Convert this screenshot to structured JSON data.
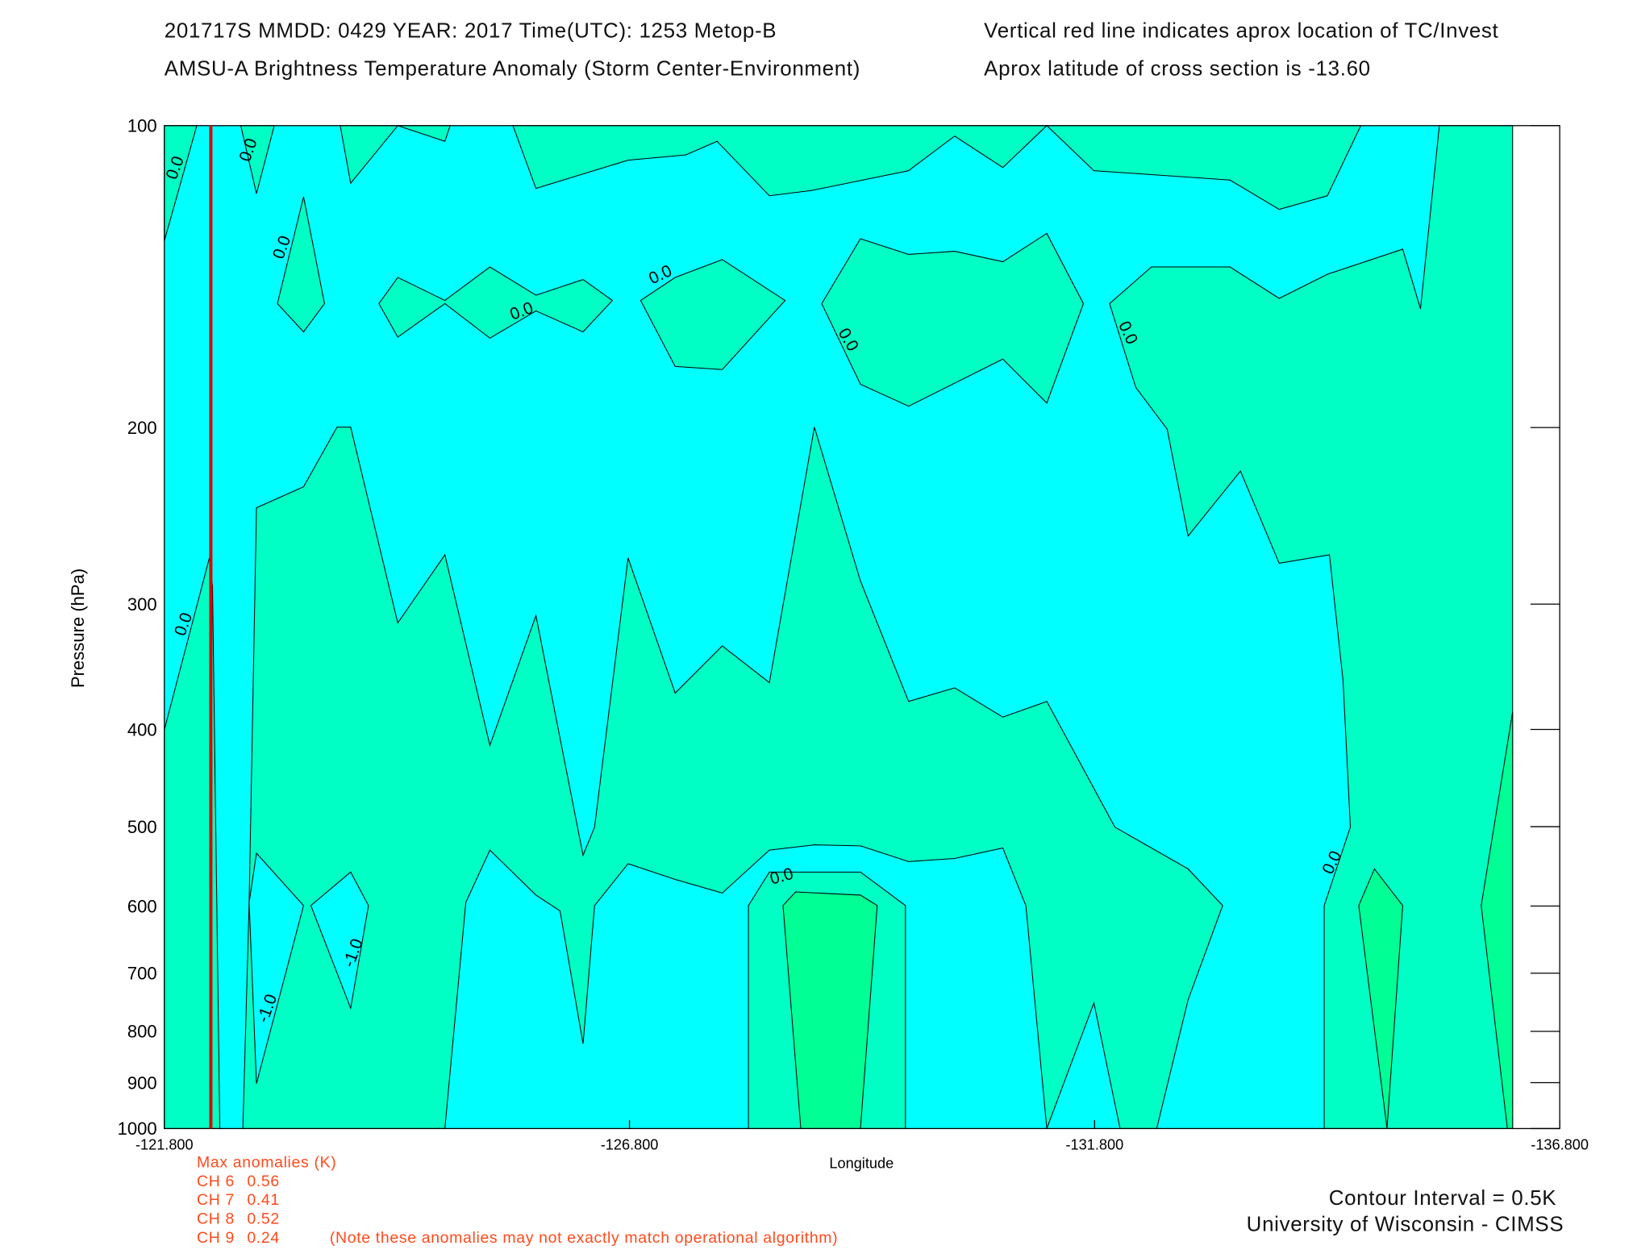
{
  "chart_data": {
    "type": "contour",
    "title": "201717S  MMDD: 0429 YEAR: 2017 Time(UTC): 1253 Metop-B",
    "subtitle": "AMSU-A Brightness Temperature Anomaly (Storm Center-Environment)",
    "notes": [
      "Vertical red line indicates aprox location of TC/Invest",
      "Aprox latitude of cross section is -13.60"
    ],
    "x_label": "Longitude",
    "y_label": "Pressure (hPa)",
    "xlim": [
      -121.8,
      -136.8
    ],
    "ylim": [
      1000,
      100
    ],
    "y_scale": "log",
    "xticks": [
      {
        "value": -121.8,
        "label": "-121.800"
      },
      {
        "value": -126.8,
        "label": "-126.800"
      },
      {
        "value": -131.8,
        "label": "-131.800"
      },
      {
        "value": -136.8,
        "label": "-136.800"
      }
    ],
    "yticks": [
      100,
      200,
      300,
      400,
      500,
      600,
      700,
      800,
      900,
      1000
    ],
    "storm_longitude": -122.3,
    "storm_line_color": "#e00000",
    "contour_labels": [
      "0.0",
      "0.0",
      "0.0",
      "0.0",
      "0.0",
      "0.0",
      "0.0",
      "0.0",
      "0.0",
      "0.0",
      "-1.0",
      "-1.0"
    ],
    "max_anomalies": {
      "title": "Max anomalies (K)",
      "channels": [
        {
          "name": "CH 6",
          "value": 0.56
        },
        {
          "name": "CH 7",
          "value": 0.41
        },
        {
          "name": "CH 8",
          "value": 0.52
        },
        {
          "name": "CH 9",
          "value": 0.24
        }
      ],
      "note": "(Note these anomalies may not exactly match operational algorithm)"
    },
    "contour_interval": "Contour Interval = 0.5K",
    "credit": "University of Wisconsin - CIMSS"
  }
}
